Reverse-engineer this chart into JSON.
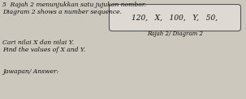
{
  "title_line1": "5  Rajah 2 menunjukkan satu jujukan nombor.",
  "title_line2": "Diagram 2 shows a number sequence.",
  "sequence_text": "120,   X,   100,   Y,   50,",
  "diagram_label": "Rajah 2/ Diagram 2",
  "question_line1": "Cari nilai X dan nilai Y.",
  "question_line2": "Find the values of X and Y.",
  "answer_label": "Jawapan/ Answer:",
  "bg_color": "#cdc8be",
  "box_face": "#dedad3",
  "box_edge": "#555555",
  "text_color": "#111111",
  "font_size_main": 5.5,
  "font_size_seq": 6.5,
  "font_size_small": 5.0
}
